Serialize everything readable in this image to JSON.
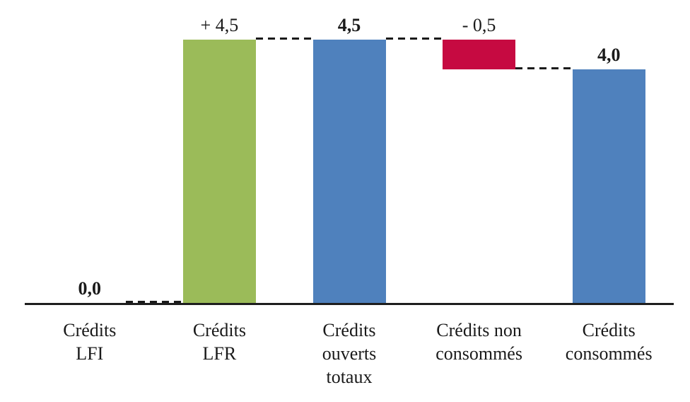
{
  "chart_data": {
    "type": "bar",
    "subtype": "waterfall",
    "title": "",
    "xlabel": "",
    "ylabel": "",
    "ylim": [
      0,
      5
    ],
    "grid": false,
    "legend": false,
    "categories": [
      "Crédits LFI",
      "Crédits LFR",
      "Crédits ouverts totaux",
      "Crédits non consommés",
      "Crédits consommés"
    ],
    "values": [
      0.0,
      4.5,
      4.5,
      -0.5,
      4.0
    ],
    "bars": [
      {
        "category_lines": [
          "Crédits",
          "LFI"
        ],
        "value": 0.0,
        "label": "0,0",
        "label_bold": true,
        "base": 0.0,
        "top": 0.0,
        "color": null,
        "role": "start"
      },
      {
        "category_lines": [
          "Crédits",
          "LFR"
        ],
        "value": 4.5,
        "label": "+ 4,5",
        "label_bold": false,
        "base": 0.0,
        "top": 4.5,
        "color": "#9BBB59",
        "role": "increase"
      },
      {
        "category_lines": [
          "Crédits",
          "ouverts",
          "totaux"
        ],
        "value": 4.5,
        "label": "4,5",
        "label_bold": true,
        "base": 0.0,
        "top": 4.5,
        "color": "#4F81BD",
        "role": "subtotal"
      },
      {
        "category_lines": [
          "Crédits non",
          "consommés"
        ],
        "value": -0.5,
        "label": "- 0,5",
        "label_bold": false,
        "base": 4.0,
        "top": 4.5,
        "color": "#C60A41",
        "role": "decrease"
      },
      {
        "category_lines": [
          "Crédits",
          "consommés"
        ],
        "value": 4.0,
        "label": "4,0",
        "label_bold": true,
        "base": 0.0,
        "top": 4.0,
        "color": "#4F81BD",
        "role": "total"
      }
    ],
    "connectors": [
      {
        "from": 0,
        "to": 1,
        "level": 0.0
      },
      {
        "from": 1,
        "to": 2,
        "level": 4.5
      },
      {
        "from": 2,
        "to": 3,
        "level": 4.5
      },
      {
        "from": 3,
        "to": 4,
        "level": 4.0
      }
    ],
    "colors": {
      "increase": "#9BBB59",
      "decrease": "#C60A41",
      "total": "#4F81BD",
      "axis": "#1E1E1E",
      "text": "#1A1A1A",
      "connector": "#1A1A1A",
      "background": "#FFFFFF"
    }
  }
}
